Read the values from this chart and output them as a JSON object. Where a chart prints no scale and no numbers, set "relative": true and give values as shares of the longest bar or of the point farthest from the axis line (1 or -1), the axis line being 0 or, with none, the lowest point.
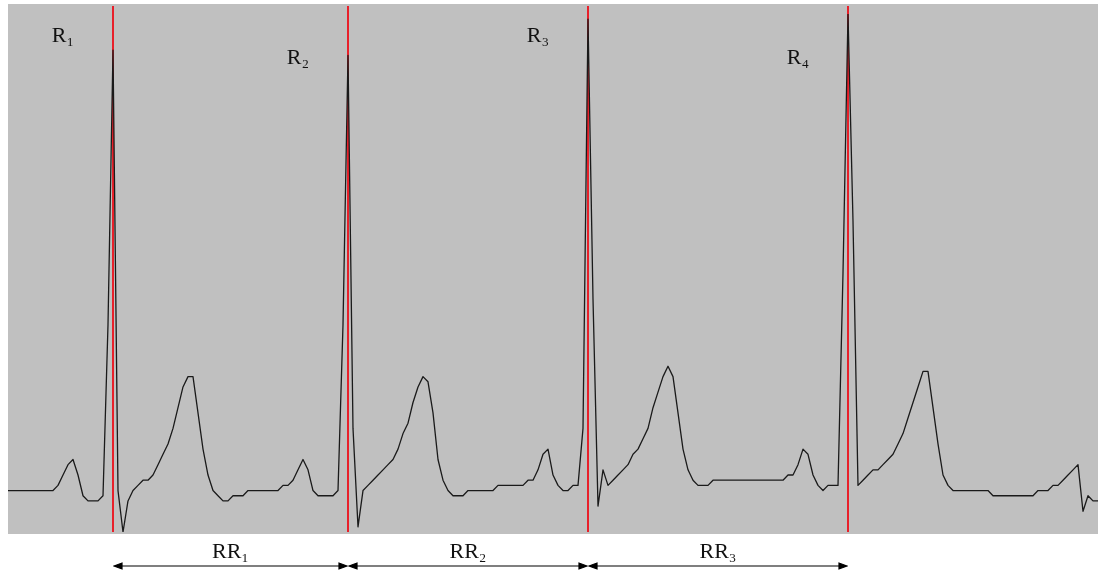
{
  "chart_data": {
    "type": "line",
    "relative": true,
    "tick_labels": false,
    "legend": false,
    "marker": "none",
    "line_style": "solid",
    "categories": [
      null,
      null,
      null,
      null,
      null,
      null,
      null,
      null,
      null,
      null,
      null,
      null,
      null,
      null,
      null,
      null,
      null,
      null,
      null,
      null,
      null,
      null,
      null,
      null,
      null,
      null,
      null,
      null,
      null,
      null,
      null,
      null,
      null,
      null,
      null,
      null,
      null,
      null,
      null,
      null,
      null,
      null,
      null,
      null,
      null,
      null,
      null,
      null,
      null,
      null,
      null,
      null,
      null,
      null,
      null,
      null,
      null,
      null,
      null,
      null,
      null,
      null,
      null,
      null,
      null,
      null,
      null,
      null,
      null,
      null,
      null,
      null,
      null,
      null,
      null,
      null,
      null,
      null,
      null,
      null,
      null,
      null,
      null,
      null,
      null,
      null,
      null,
      null,
      null,
      null,
      null,
      null,
      null,
      null,
      null,
      null,
      null,
      null,
      null,
      null,
      null,
      null,
      null,
      null,
      null,
      null,
      null,
      null,
      null,
      null,
      null,
      null,
      null,
      null,
      null,
      null,
      null,
      null,
      null,
      null,
      null,
      null,
      null,
      null,
      null,
      null,
      null,
      null,
      null,
      null,
      null,
      null,
      null,
      null,
      null,
      null,
      null,
      null,
      null,
      null,
      null,
      null,
      null,
      null,
      null,
      null,
      null,
      null,
      null,
      null,
      null,
      null,
      null,
      null,
      null,
      null,
      null,
      null,
      null,
      null,
      null,
      null,
      null,
      null,
      null,
      null,
      null,
      null,
      null,
      null,
      null,
      null,
      null,
      null,
      null,
      null,
      null,
      null,
      null,
      null,
      null,
      null,
      null,
      null,
      null,
      null,
      null,
      null,
      null,
      null,
      null,
      null,
      null,
      null,
      null,
      null,
      null,
      null,
      null,
      null,
      null,
      null,
      null,
      null,
      null,
      null,
      null,
      null,
      null,
      null,
      null,
      null,
      null,
      null,
      null,
      null,
      null,
      null,
      null
    ],
    "series": [
      {
        "color": "#1a1a1a",
        "values": [
          0.08,
          0.08,
          0.08,
          0.08,
          0.08,
          0.08,
          0.08,
          0.08,
          0.08,
          0.08,
          0.09,
          0.11,
          0.13,
          0.14,
          0.11,
          0.07,
          0.06,
          0.06,
          0.06,
          0.07,
          0.4,
          0.93,
          0.08,
          0,
          0.06,
          0.08,
          0.09,
          0.1,
          0.1,
          0.11,
          0.13,
          0.15,
          0.17,
          0.2,
          0.24,
          0.28,
          0.3,
          0.3,
          0.23,
          0.16,
          0.11,
          0.08,
          0.07,
          0.06,
          0.06,
          0.07,
          0.07,
          0.07,
          0.08,
          0.08,
          0.08,
          0.08,
          0.08,
          0.08,
          0.08,
          0.09,
          0.09,
          0.1,
          0.12,
          0.14,
          0.12,
          0.08,
          0.07,
          0.07,
          0.07,
          0.07,
          0.08,
          0.4,
          0.92,
          0.2,
          0.01,
          0.08,
          0.09,
          0.1,
          0.11,
          0.12,
          0.13,
          0.14,
          0.16,
          0.19,
          0.21,
          0.25,
          0.28,
          0.3,
          0.29,
          0.23,
          0.14,
          0.1,
          0.08,
          0.07,
          0.07,
          0.07,
          0.08,
          0.08,
          0.08,
          0.08,
          0.08,
          0.08,
          0.09,
          0.09,
          0.09,
          0.09,
          0.09,
          0.09,
          0.1,
          0.1,
          0.12,
          0.15,
          0.16,
          0.11,
          0.09,
          0.08,
          0.08,
          0.09,
          0.09,
          0.2,
          0.99,
          0.45,
          0.05,
          0.12,
          0.09,
          0.1,
          0.11,
          0.12,
          0.13,
          0.15,
          0.16,
          0.18,
          0.2,
          0.24,
          0.27,
          0.3,
          0.32,
          0.3,
          0.23,
          0.16,
          0.12,
          0.1,
          0.09,
          0.09,
          0.09,
          0.1,
          0.1,
          0.1,
          0.1,
          0.1,
          0.1,
          0.1,
          0.1,
          0.1,
          0.1,
          0.1,
          0.1,
          0.1,
          0.1,
          0.1,
          0.11,
          0.11,
          0.13,
          0.16,
          0.15,
          0.11,
          0.09,
          0.08,
          0.09,
          0.09,
          0.09,
          0.5,
          1.0,
          0.6,
          0.09,
          0.1,
          0.11,
          0.12,
          0.12,
          0.13,
          0.14,
          0.15,
          0.17,
          0.19,
          0.22,
          0.25,
          0.28,
          0.31,
          0.31,
          0.24,
          0.17,
          0.11,
          0.09,
          0.08,
          0.08,
          0.08,
          0.08,
          0.08,
          0.08,
          0.08,
          0.08,
          0.07,
          0.07,
          0.07,
          0.07,
          0.07,
          0.07,
          0.07,
          0.07,
          0.07,
          0.08,
          0.08,
          0.08,
          0.09,
          0.09,
          0.1,
          0.11,
          0.12,
          0.13,
          0.04,
          0.07,
          0.06,
          0.06
        ]
      }
    ],
    "annotations": [
      "R₁",
      "R₂",
      "R₃",
      "R₄",
      "RR₁",
      "RR₂",
      "RR₃"
    ]
  }
}
